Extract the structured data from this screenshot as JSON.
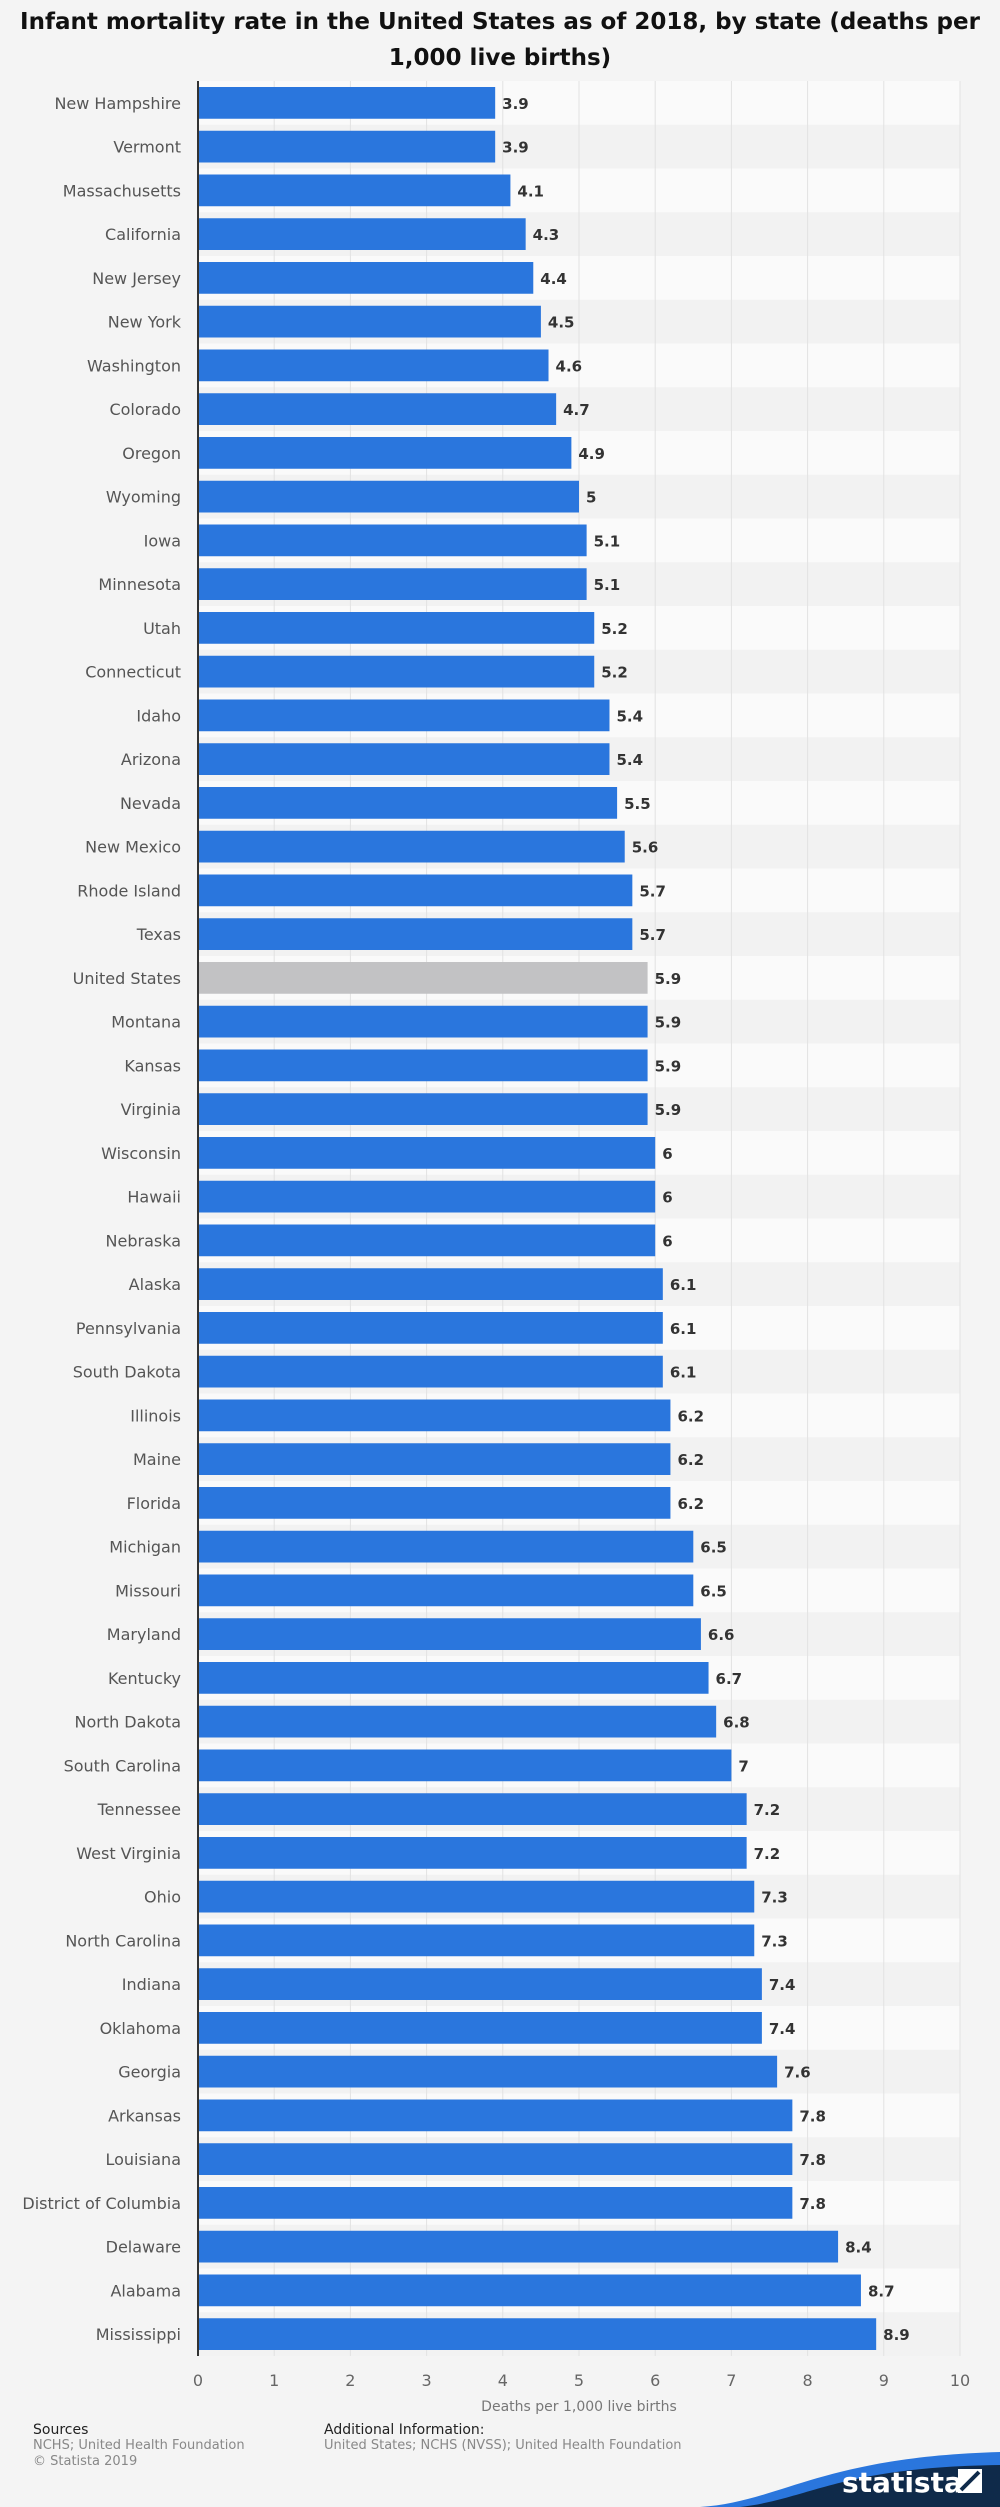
{
  "chart_data": {
    "type": "bar",
    "orientation": "horizontal",
    "title": "Infant mortality rate in the United States as of 2018, by state (deaths per 1,000 live births)",
    "xlabel": "Deaths per 1,000 live births",
    "xlim": [
      0,
      10
    ],
    "xticks": [
      "0",
      "1",
      "2",
      "3",
      "4",
      "5",
      "6",
      "7",
      "8",
      "9",
      "10"
    ],
    "grid": true,
    "categories": [
      "New Hampshire",
      "Vermont",
      "Massachusetts",
      "California",
      "New Jersey",
      "New York",
      "Washington",
      "Colorado",
      "Oregon",
      "Wyoming",
      "Iowa",
      "Minnesota",
      "Utah",
      "Connecticut",
      "Idaho",
      "Arizona",
      "Nevada",
      "New Mexico",
      "Rhode Island",
      "Texas",
      "United States",
      "Montana",
      "Kansas",
      "Virginia",
      "Wisconsin",
      "Hawaii",
      "Nebraska",
      "Alaska",
      "Pennsylvania",
      "South Dakota",
      "Illinois",
      "Maine",
      "Florida",
      "Michigan",
      "Missouri",
      "Maryland",
      "Kentucky",
      "North Dakota",
      "South Carolina",
      "Tennessee",
      "West Virginia",
      "Ohio",
      "North Carolina",
      "Indiana",
      "Oklahoma",
      "Georgia",
      "Arkansas",
      "Louisiana",
      "District of Columbia",
      "Delaware",
      "Alabama",
      "Mississippi"
    ],
    "values": [
      3.9,
      3.9,
      4.1,
      4.3,
      4.4,
      4.5,
      4.6,
      4.7,
      4.9,
      5,
      5.1,
      5.1,
      5.2,
      5.2,
      5.4,
      5.4,
      5.5,
      5.6,
      5.7,
      5.7,
      5.9,
      5.9,
      5.9,
      5.9,
      6,
      6,
      6,
      6.1,
      6.1,
      6.1,
      6.2,
      6.2,
      6.2,
      6.5,
      6.5,
      6.6,
      6.7,
      6.8,
      7,
      7.2,
      7.2,
      7.3,
      7.3,
      7.4,
      7.4,
      7.6,
      7.8,
      7.8,
      7.8,
      8.4,
      8.7,
      8.9
    ],
    "highlight": "United States",
    "colors": {
      "bar": "#2a76dd",
      "highlight": "#c2c2c4",
      "label": "#333333",
      "category": "#555555"
    }
  },
  "footer": {
    "sources_heading": "Sources",
    "sources_line1": "NCHS; United Health Foundation",
    "sources_line2": "© Statista 2019",
    "additional_heading": "Additional Information:",
    "additional_text": "United States; NCHS (NVSS); United Health Foundation",
    "brand": "statista"
  }
}
